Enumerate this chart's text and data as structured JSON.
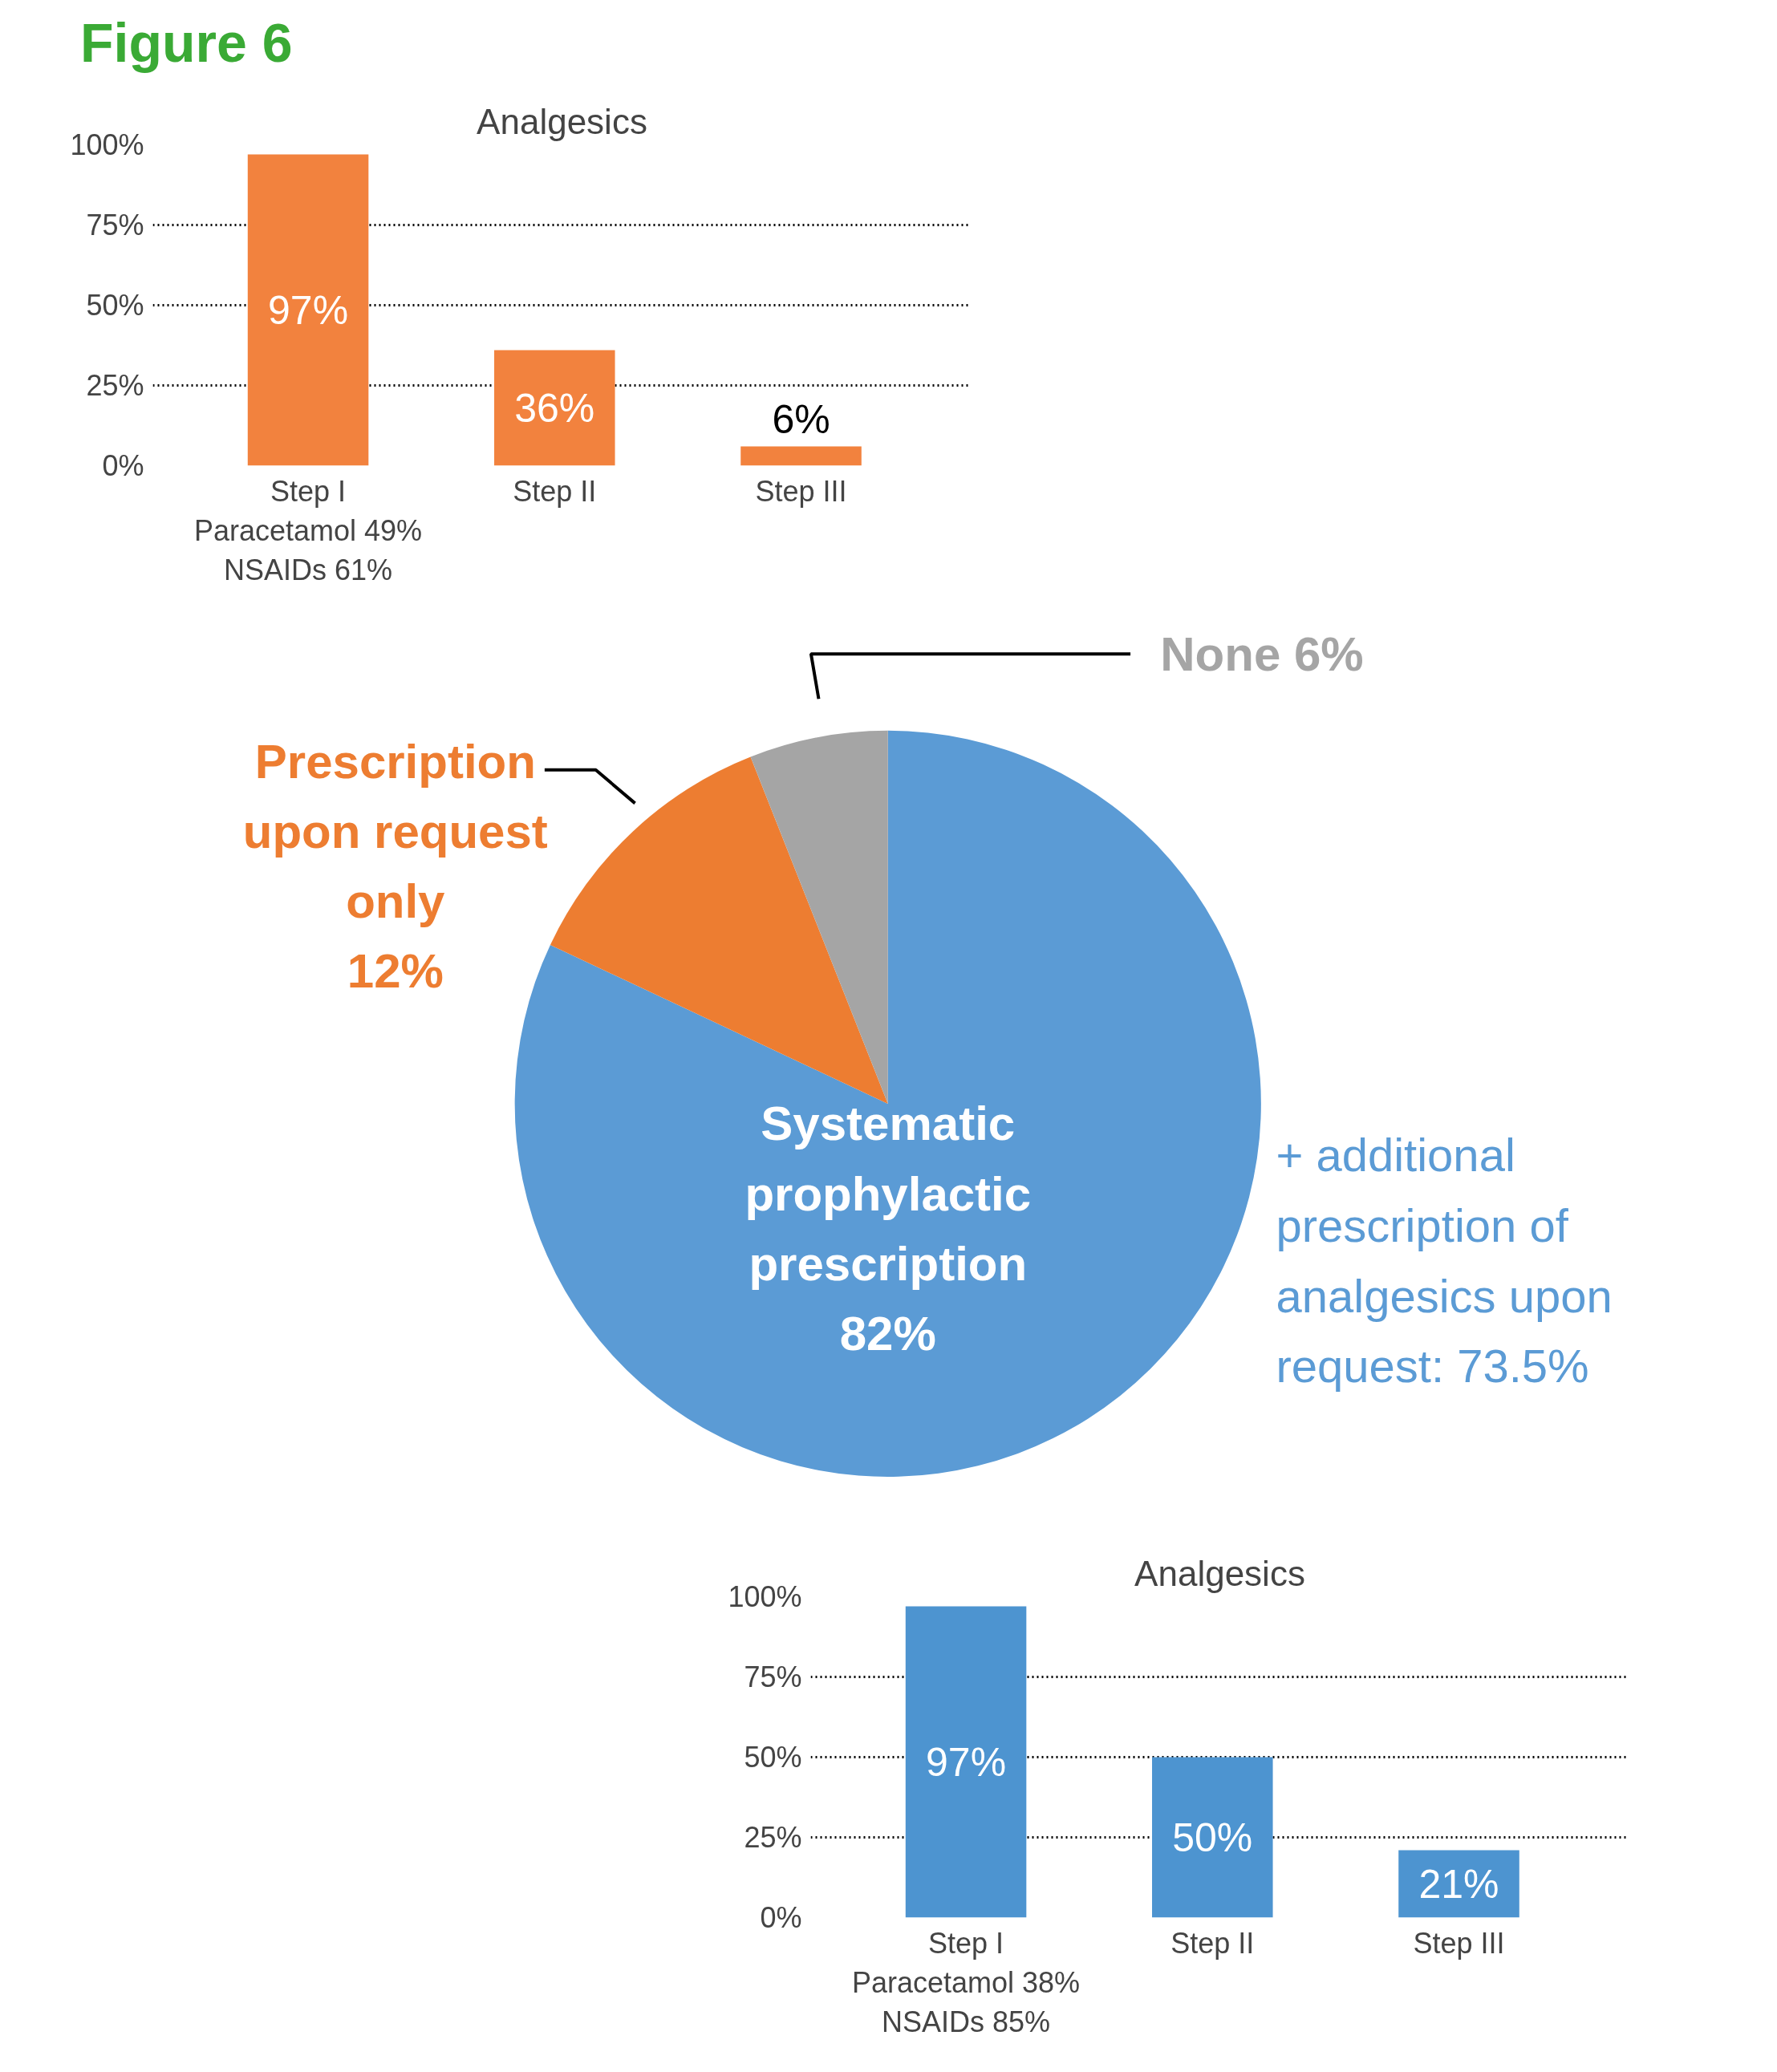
{
  "chart_data": [
    {
      "type": "bar",
      "title": "Analgesics",
      "annotations": [
        "Figure 6",
        "Paracetamol 49%",
        "NSAIDs 61%"
      ],
      "categories": [
        "Step I",
        "Step II",
        "Step III"
      ],
      "values": [
        97,
        36,
        6
      ],
      "value_labels": [
        "97%",
        "36%",
        "6%"
      ],
      "color": "#f2823e",
      "ylim": [
        0,
        100
      ],
      "yticks": [
        {
          "value": 0,
          "label": "0%"
        },
        {
          "value": 25,
          "label": "25%"
        },
        {
          "value": 50,
          "label": "50%"
        },
        {
          "value": 75,
          "label": "75%"
        },
        {
          "value": 100,
          "label": "100%"
        }
      ],
      "grid": "y"
    },
    {
      "type": "pie",
      "categories": [
        "Systematic prophylactic prescription",
        "Prescription upon request only",
        "None"
      ],
      "values": [
        82,
        12,
        6
      ],
      "value_labels": [
        "82%",
        "12%",
        "6%"
      ],
      "colors": [
        "#5b9bd5",
        "#ed7d31",
        "#a5a5a5"
      ],
      "annotations": [
        "+ additional prescription of analgesics upon request: 73.5%"
      ]
    },
    {
      "type": "bar",
      "title": "Analgesics",
      "annotations": [
        "Paracetamol 38%",
        "NSAIDs 85%"
      ],
      "categories": [
        "Step I",
        "Step II",
        "Step III"
      ],
      "values": [
        97,
        50,
        21
      ],
      "value_labels": [
        "97%",
        "50%",
        "21%"
      ],
      "color": "#4d94d0",
      "ylim": [
        0,
        100
      ],
      "yticks": [
        {
          "value": 0,
          "label": "0%"
        },
        {
          "value": 25,
          "label": "25%"
        },
        {
          "value": 50,
          "label": "50%"
        },
        {
          "value": 75,
          "label": "75%"
        },
        {
          "value": 100,
          "label": "100%"
        }
      ],
      "grid": "y"
    }
  ]
}
